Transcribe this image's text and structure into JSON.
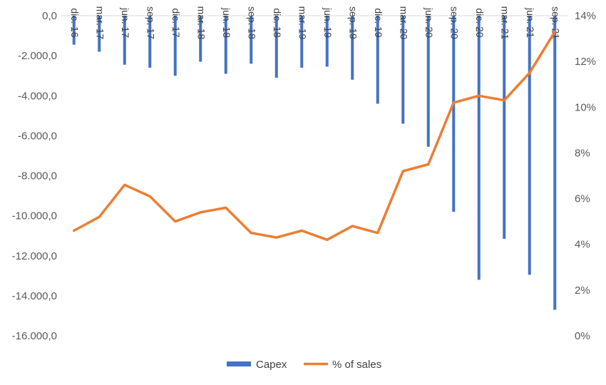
{
  "chart_data": {
    "type": "bar+line",
    "categories": [
      "dic. 16",
      "mar. 17",
      "jun. 17",
      "sep. 17",
      "dic. 17",
      "mar. 18",
      "jun. 18",
      "sep. 18",
      "dic. 18",
      "mar. 19",
      "jun. 19",
      "sep. 19",
      "dic. 19",
      "mar. 20",
      "jun. 20",
      "sep. 20",
      "dic. 20",
      "mar. 21",
      "jun. 21",
      "sep. 21"
    ],
    "series": [
      {
        "name": "Capex",
        "type": "bar",
        "axis": "left",
        "color": "#4472C4",
        "values": [
          -1450,
          -1800,
          -2450,
          -2600,
          -3000,
          -2300,
          -2900,
          -2400,
          -3100,
          -2600,
          -2550,
          -3200,
          -4400,
          -5400,
          -6550,
          -9800,
          -13200,
          -11150,
          -12950,
          -14700
        ]
      },
      {
        "name": "% of sales",
        "type": "line",
        "axis": "right",
        "color": "#ED7D31",
        "values": [
          4.6,
          5.2,
          6.6,
          6.1,
          5.0,
          5.4,
          5.6,
          4.5,
          4.3,
          4.6,
          4.2,
          4.8,
          4.5,
          7.2,
          7.5,
          10.2,
          10.5,
          10.3,
          11.5,
          13.3
        ]
      }
    ],
    "y_left": {
      "min": -16000,
      "max": 0,
      "step": 2000,
      "tick_labels": [
        "0,0",
        "-2.000,0",
        "-4.000,0",
        "-6.000,0",
        "-8.000,0",
        "-10.000,0",
        "-12.000,0",
        "-14.000,0",
        "-16.000,0"
      ]
    },
    "y_right": {
      "min": 0,
      "max": 14,
      "step": 2,
      "tick_labels": [
        "14%",
        "12%",
        "10%",
        "8%",
        "6%",
        "4%",
        "2%",
        "0%"
      ]
    },
    "legend": {
      "position": "bottom",
      "items": [
        "Capex",
        "% of sales"
      ]
    },
    "grid": false
  }
}
